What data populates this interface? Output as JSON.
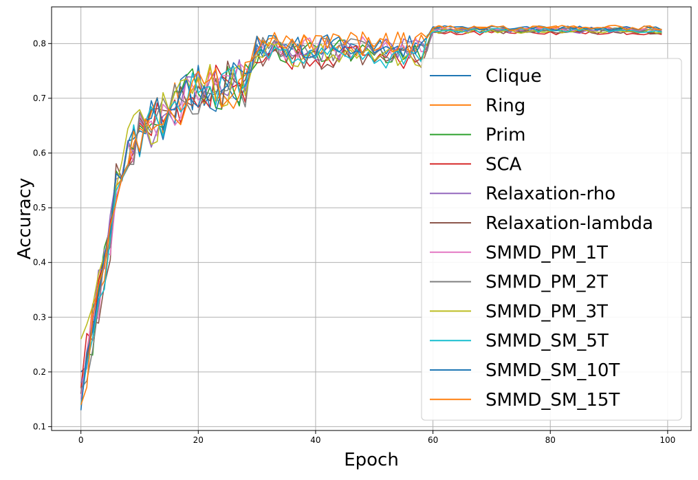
{
  "chart_data": {
    "type": "line",
    "title": "",
    "xlabel": "Epoch",
    "ylabel": "Accuracy",
    "xlim": [
      -5,
      104
    ],
    "ylim": [
      0.093,
      0.867
    ],
    "xticks": [
      0,
      20,
      40,
      60,
      80,
      100
    ],
    "yticks": [
      0.1,
      0.2,
      0.3,
      0.4,
      0.5,
      0.6,
      0.7,
      0.8
    ],
    "grid": true,
    "legend_position": "right",
    "epochs": 100,
    "series": [
      {
        "name": "Clique",
        "color": "#1f77b4",
        "start": 0.2,
        "plateau1": 0.795,
        "plateau2": 0.825
      },
      {
        "name": "Ring",
        "color": "#ff7f0e",
        "start": 0.18,
        "plateau1": 0.8,
        "plateau2": 0.828
      },
      {
        "name": "Prim",
        "color": "#2ca02c",
        "start": 0.16,
        "plateau1": 0.785,
        "plateau2": 0.824
      },
      {
        "name": "SCA",
        "color": "#d62728",
        "start": 0.17,
        "plateau1": 0.775,
        "plateau2": 0.82
      },
      {
        "name": "Relaxation-rho",
        "color": "#9467bd",
        "start": 0.18,
        "plateau1": 0.79,
        "plateau2": 0.823
      },
      {
        "name": "Relaxation-lambda",
        "color": "#8c564b",
        "start": 0.16,
        "plateau1": 0.775,
        "plateau2": 0.822
      },
      {
        "name": "SMMD_PM_1T",
        "color": "#e377c2",
        "start": 0.15,
        "plateau1": 0.79,
        "plateau2": 0.826
      },
      {
        "name": "SMMD_PM_2T",
        "color": "#7f7f7f",
        "start": 0.17,
        "plateau1": 0.79,
        "plateau2": 0.825
      },
      {
        "name": "SMMD_PM_3T",
        "color": "#bcbd22",
        "start": 0.26,
        "plateau1": 0.78,
        "plateau2": 0.823
      },
      {
        "name": "SMMD_SM_5T",
        "color": "#17becf",
        "start": 0.14,
        "plateau1": 0.775,
        "plateau2": 0.824
      },
      {
        "name": "SMMD_SM_10T",
        "color": "#1f77b4",
        "start": 0.13,
        "plateau1": 0.795,
        "plateau2": 0.828
      },
      {
        "name": "SMMD_SM_15T",
        "color": "#ff7f0e",
        "start": 0.14,
        "plateau1": 0.8,
        "plateau2": 0.829
      }
    ]
  }
}
